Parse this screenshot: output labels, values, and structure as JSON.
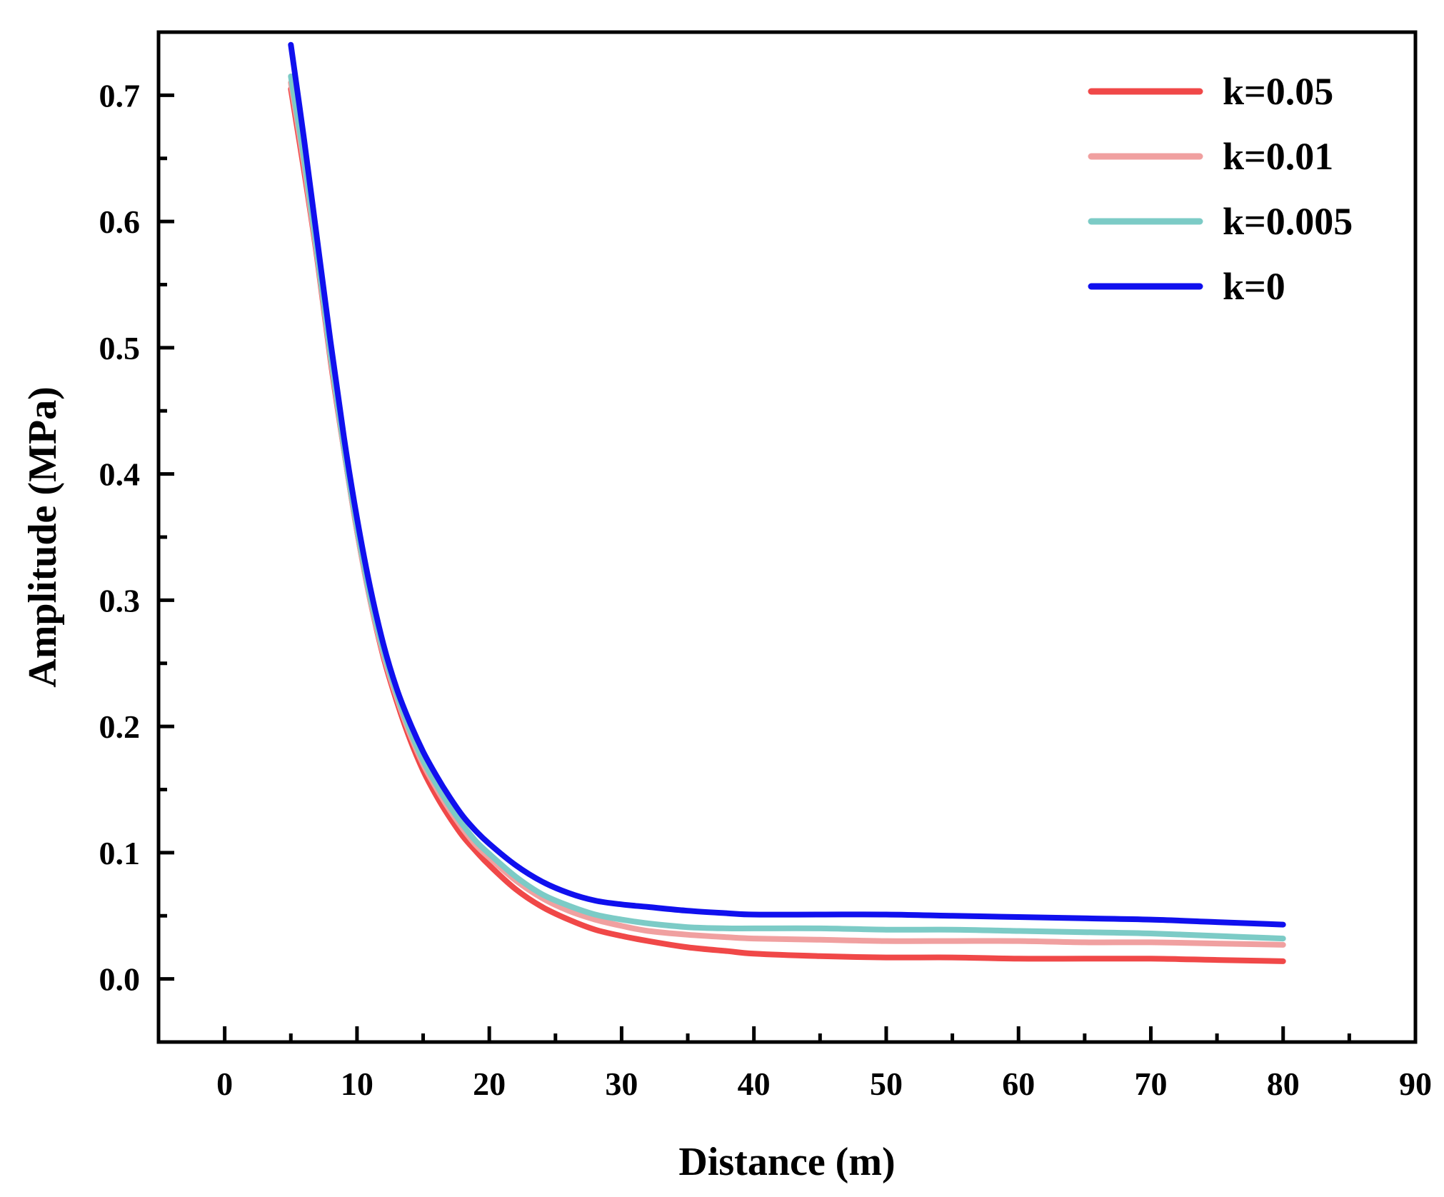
{
  "chart_data": {
    "type": "line",
    "title": "",
    "xlabel": "Distance (m)",
    "ylabel": "Amplitude (MPa)",
    "xlim": [
      -5,
      90
    ],
    "ylim": [
      -0.05,
      0.75
    ],
    "xticks": [
      0,
      10,
      20,
      30,
      40,
      50,
      60,
      70,
      80,
      90
    ],
    "xtick_labels": [
      "0",
      "10",
      "20",
      "30",
      "40",
      "50",
      "60",
      "70",
      "80",
      "90"
    ],
    "yticks": [
      0.0,
      0.1,
      0.2,
      0.3,
      0.4,
      0.5,
      0.6,
      0.7
    ],
    "ytick_labels": [
      "0.0",
      "0.1",
      "0.2",
      "0.3",
      "0.4",
      "0.5",
      "0.6",
      "0.7"
    ],
    "grid": false,
    "legend_position": "top-right",
    "x": [
      5,
      6,
      7,
      8,
      9,
      10,
      11,
      12,
      13,
      14,
      15,
      16,
      17,
      18,
      19,
      20,
      22,
      24,
      26,
      28,
      30,
      32,
      35,
      38,
      40,
      45,
      50,
      55,
      60,
      65,
      70,
      75,
      80
    ],
    "series": [
      {
        "name": "k=0.05",
        "color": "#f04848",
        "values": [
          0.705,
          0.64,
          0.57,
          0.49,
          0.42,
          0.355,
          0.3,
          0.255,
          0.22,
          0.19,
          0.165,
          0.145,
          0.128,
          0.113,
          0.101,
          0.09,
          0.071,
          0.057,
          0.047,
          0.039,
          0.034,
          0.03,
          0.025,
          0.022,
          0.02,
          0.018,
          0.017,
          0.017,
          0.016,
          0.016,
          0.016,
          0.015,
          0.014
        ]
      },
      {
        "name": "k=0.01",
        "color": "#f0a0a0",
        "values": [
          0.71,
          0.645,
          0.572,
          0.492,
          0.42,
          0.355,
          0.3,
          0.257,
          0.223,
          0.194,
          0.17,
          0.151,
          0.134,
          0.119,
          0.106,
          0.096,
          0.078,
          0.064,
          0.054,
          0.047,
          0.042,
          0.038,
          0.035,
          0.033,
          0.032,
          0.031,
          0.03,
          0.03,
          0.03,
          0.029,
          0.029,
          0.028,
          0.027
        ]
      },
      {
        "name": "k=0.005",
        "color": "#7ccbc6",
        "values": [
          0.715,
          0.65,
          0.575,
          0.495,
          0.422,
          0.358,
          0.303,
          0.26,
          0.226,
          0.197,
          0.173,
          0.154,
          0.137,
          0.122,
          0.109,
          0.099,
          0.081,
          0.067,
          0.058,
          0.051,
          0.047,
          0.044,
          0.041,
          0.04,
          0.04,
          0.04,
          0.039,
          0.039,
          0.038,
          0.037,
          0.036,
          0.034,
          0.032
        ]
      },
      {
        "name": "k=0",
        "color": "#1010ee",
        "values": [
          0.74,
          0.665,
          0.585,
          0.505,
          0.43,
          0.365,
          0.31,
          0.265,
          0.23,
          0.203,
          0.18,
          0.161,
          0.144,
          0.129,
          0.117,
          0.107,
          0.09,
          0.077,
          0.068,
          0.062,
          0.059,
          0.057,
          0.054,
          0.052,
          0.051,
          0.051,
          0.051,
          0.05,
          0.049,
          0.048,
          0.047,
          0.045,
          0.043
        ]
      }
    ]
  }
}
